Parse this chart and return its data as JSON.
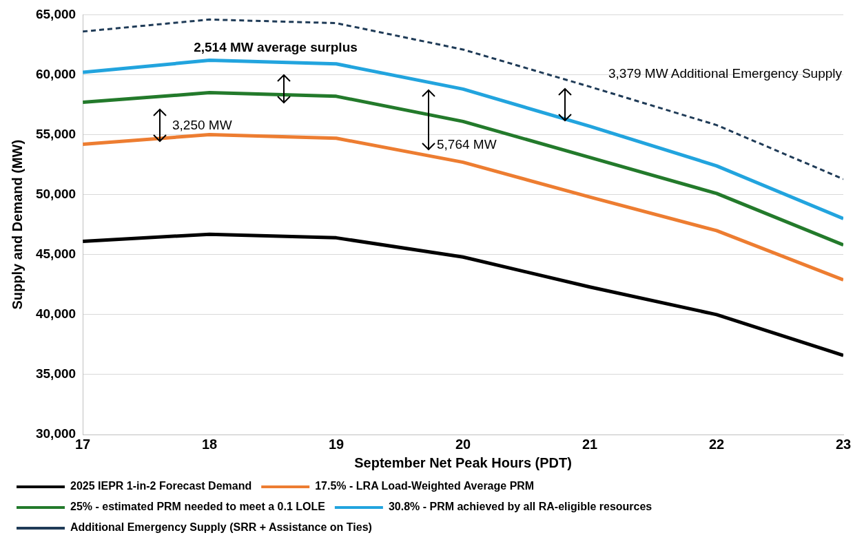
{
  "chart_data": {
    "type": "line",
    "xlabel": "September Net Peak Hours (PDT)",
    "ylabel": "Supply and Demand (MW)",
    "x": [
      17,
      18,
      19,
      20,
      21,
      22,
      23
    ],
    "xlim": [
      17,
      23
    ],
    "xticks": [
      17,
      18,
      19,
      20,
      21,
      22,
      23
    ],
    "ylim": [
      30000,
      65000
    ],
    "yticks": [
      {
        "value": 30000,
        "label": "30,000"
      },
      {
        "value": 35000,
        "label": "35,000"
      },
      {
        "value": 40000,
        "label": "40,000"
      },
      {
        "value": 45000,
        "label": "45,000"
      },
      {
        "value": 50000,
        "label": "50,000"
      },
      {
        "value": 55000,
        "label": "55,000"
      },
      {
        "value": 60000,
        "label": "60,000"
      },
      {
        "value": 65000,
        "label": "65,000"
      }
    ],
    "grid": "y",
    "legend": "bottom",
    "marker": "none",
    "series": [
      {
        "name": "2025 IEPR 1-in-2 Forecast Demand",
        "color": "#000000",
        "values": [
          46100,
          46700,
          46400,
          44800,
          42300,
          40000,
          36600
        ]
      },
      {
        "name": "17.5% - LRA Load-Weighted Average PRM",
        "color": "#ed7d31",
        "values": [
          54200,
          55000,
          54700,
          52700,
          49800,
          47000,
          42900
        ]
      },
      {
        "name": "25% - estimated PRM needed to meet a 0.1 LOLE",
        "color": "#237a2b",
        "values": [
          57700,
          58500,
          58200,
          56100,
          53100,
          50100,
          45800
        ]
      },
      {
        "name": "30.8% - PRM achieved by all RA-eligible resources",
        "color": "#22a4de",
        "values": [
          60200,
          61200,
          60900,
          58800,
          55700,
          52400,
          48000
        ]
      },
      {
        "name": "Additional Emergency Supply (SRR + Assistance on Ties)",
        "color": "#1f3b57",
        "line_style": "dashed",
        "values": [
          63600,
          64600,
          64300,
          62100,
          59000,
          55800,
          51300
        ]
      }
    ],
    "annotations": [
      "2,514 MW average surplus",
      "3,250 MW",
      "5,764 MW",
      "3,379 MW Additional Emergency Supply"
    ]
  }
}
